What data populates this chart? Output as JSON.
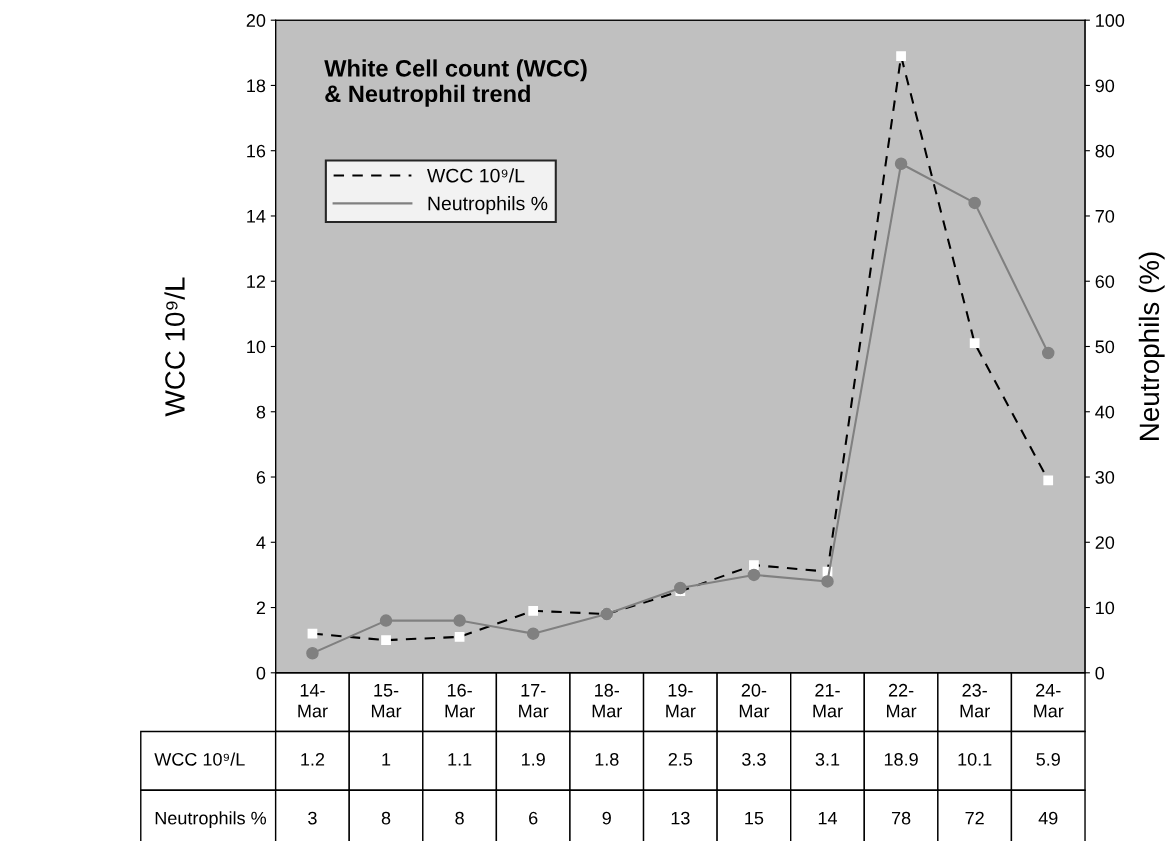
{
  "chart_data": {
    "type": "line",
    "title": "White Cell count (WCC)\n& Neutrophil trend",
    "categories": [
      "14-Mar",
      "15-Mar",
      "16-Mar",
      "17-Mar",
      "18-Mar",
      "19-Mar",
      "20-Mar",
      "21-Mar",
      "22-Mar",
      "23-Mar",
      "24-Mar"
    ],
    "series": [
      {
        "name": "WCC 10⁹/L",
        "color": "#000000",
        "values": [
          1.2,
          1,
          1.1,
          1.9,
          1.8,
          2.5,
          3.3,
          3.1,
          18.9,
          10.1,
          5.9
        ],
        "line_style": "dashed",
        "marker": "square"
      },
      {
        "name": "Neutrophils %",
        "color": "#808080",
        "values": [
          3,
          8,
          8,
          6,
          9,
          13,
          15,
          14,
          78,
          72,
          49
        ],
        "axis": "y2",
        "line_style": "solid",
        "marker": "circle"
      }
    ],
    "ylabel": "WCC 10⁹/L",
    "y2label": "Neutrophils (%)",
    "ylim": [
      0,
      20
    ],
    "yticks": [
      0,
      2,
      4,
      6,
      8,
      10,
      12,
      14,
      16,
      18,
      20
    ],
    "y2lim": [
      0,
      100
    ],
    "y2ticks": [
      0,
      10,
      20,
      30,
      40,
      50,
      60,
      70,
      80,
      90,
      100
    ],
    "grid": false,
    "legend": "top left",
    "data_labels": true
  }
}
